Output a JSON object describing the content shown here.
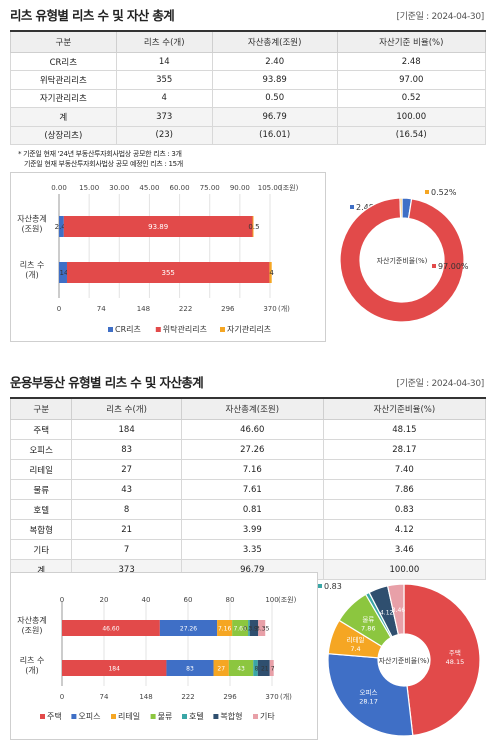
{
  "section1": {
    "title": "리츠 유형별 리츠 수 및 자산 총계",
    "date_label": "[기준일 : 2024-04-30]",
    "headers": [
      "구분",
      "리츠 수(개)",
      "자산총계(조원)",
      "자산기준 비율(%)"
    ],
    "rows": [
      [
        "CR리츠",
        "14",
        "2.40",
        "2.48"
      ],
      [
        "위탁관리리츠",
        "355",
        "93.89",
        "97.00"
      ],
      [
        "자기관리리츠",
        "4",
        "0.50",
        "0.52"
      ],
      [
        "계",
        "373",
        "96.79",
        "100.00"
      ],
      [
        "(상장리츠)",
        "(23)",
        "(16.01)",
        "(16.54)"
      ]
    ],
    "notes": [
      "* 기준일 현재 '24년 부동산투자회사법상 공모한 리츠 : 3개",
      "기준일 현재 부동산투자회사법상 공모 예정인 리츠 : 15개"
    ]
  },
  "section2": {
    "title": "운용부동산 유형별 리츠 수 및 자산총계",
    "date_label": "[기준일 : 2024-04-30]",
    "headers": [
      "구분",
      "리츠 수(개)",
      "자산총계(조원)",
      "자산기준비율(%)"
    ],
    "rows": [
      [
        "주택",
        "184",
        "46.60",
        "48.15"
      ],
      [
        "오피스",
        "83",
        "27.26",
        "28.17"
      ],
      [
        "리테일",
        "27",
        "7.16",
        "7.40"
      ],
      [
        "물류",
        "43",
        "7.61",
        "7.86"
      ],
      [
        "호텔",
        "8",
        "0.81",
        "0.83"
      ],
      [
        "복합형",
        "21",
        "3.99",
        "4.12"
      ],
      [
        "기타",
        "7",
        "3.35",
        "3.46"
      ],
      [
        "계",
        "373",
        "96.79",
        "100.00"
      ]
    ]
  },
  "chart_data": [
    {
      "type": "bar",
      "orientation": "horizontal-stacked",
      "categories": [
        "자산총계\n(조원)",
        "리츠 수\n(개)"
      ],
      "series": [
        {
          "name": "CR리츠",
          "color": "#3f6fc6",
          "values": [
            2.4,
            14
          ],
          "labels": [
            "2.40",
            "14"
          ]
        },
        {
          "name": "위탁관리리츠",
          "color": "#e24a4a",
          "values": [
            93.89,
            355
          ],
          "labels": [
            "93.89",
            "355"
          ]
        },
        {
          "name": "자기관리리츠",
          "color": "#f5a623",
          "values": [
            0.5,
            4
          ],
          "labels": [
            "0.5",
            "4"
          ]
        }
      ],
      "top_axis": {
        "ticks": [
          "0.00",
          "15.00",
          "30.00",
          "45.00",
          "60.00",
          "75.00",
          "90.00",
          "105.00"
        ],
        "unit": "(조원)",
        "max": 105
      },
      "bottom_axis": {
        "ticks": [
          "0",
          "74",
          "148",
          "222",
          "296",
          "370"
        ],
        "unit": "(개)",
        "max": 370
      },
      "legend_position": "bottom"
    },
    {
      "type": "pie",
      "style": "donut",
      "center_label": "자산기준비율(%)",
      "slices": [
        {
          "name": "CR리츠",
          "value": 2.48,
          "label": "2.48%",
          "color": "#3f6fc6"
        },
        {
          "name": "위탁관리리츠",
          "value": 97.0,
          "label": "97.00%",
          "color": "#e24a4a"
        },
        {
          "name": "자기관리리츠",
          "value": 0.52,
          "label": "0.52%",
          "color": "#f5a623"
        }
      ]
    },
    {
      "type": "bar",
      "orientation": "horizontal-stacked",
      "categories": [
        "자산총계\n(조원)",
        "리츠 수\n(개)"
      ],
      "series": [
        {
          "name": "주택",
          "color": "#e24a4a",
          "values": [
            46.6,
            184
          ],
          "labels": [
            "46.60",
            "184"
          ]
        },
        {
          "name": "오피스",
          "color": "#3f6fc6",
          "values": [
            27.26,
            83
          ],
          "labels": [
            "27.26",
            "83"
          ]
        },
        {
          "name": "리테일",
          "color": "#f5a623",
          "values": [
            7.16,
            27
          ],
          "labels": [
            "7.16",
            "27"
          ]
        },
        {
          "name": "물류",
          "color": "#8cc63f",
          "values": [
            7.61,
            43
          ],
          "labels": [
            "7.61",
            "43"
          ]
        },
        {
          "name": "호텔",
          "color": "#3aa6a6",
          "values": [
            0.81,
            8
          ],
          "labels": [
            "0.81",
            "8"
          ]
        },
        {
          "name": "복합형",
          "color": "#2f4f6f",
          "values": [
            3.99,
            21
          ],
          "labels": [
            "3.99",
            "21"
          ]
        },
        {
          "name": "기타",
          "color": "#e8a0a8",
          "values": [
            3.35,
            7
          ],
          "labels": [
            "3.35",
            "7"
          ]
        }
      ],
      "top_axis": {
        "ticks": [
          "0",
          "20",
          "40",
          "60",
          "80",
          "100"
        ],
        "unit": "(조원)",
        "max": 100
      },
      "bottom_axis": {
        "ticks": [
          "0",
          "74",
          "148",
          "222",
          "296",
          "370"
        ],
        "unit": "(개)",
        "max": 370
      },
      "legend_position": "bottom"
    },
    {
      "type": "pie",
      "style": "donut",
      "center_label": "자산기준비율(%)",
      "slices": [
        {
          "name": "주택",
          "value": 48.15,
          "label": "48.15",
          "color": "#e24a4a"
        },
        {
          "name": "오피스",
          "value": 28.17,
          "label": "28.17",
          "color": "#3f6fc6"
        },
        {
          "name": "리테일",
          "value": 7.4,
          "label": "7.4",
          "color": "#f5a623"
        },
        {
          "name": "물류",
          "value": 7.86,
          "label": "7.86",
          "color": "#8cc63f"
        },
        {
          "name": "호텔",
          "value": 0.83,
          "label": "0.83",
          "color": "#3aa6a6"
        },
        {
          "name": "복합형",
          "value": 4.12,
          "label": "4.12",
          "color": "#2f4f6f"
        },
        {
          "name": "기타",
          "value": 3.46,
          "label": "3.46",
          "color": "#e8a0a8"
        }
      ]
    }
  ]
}
